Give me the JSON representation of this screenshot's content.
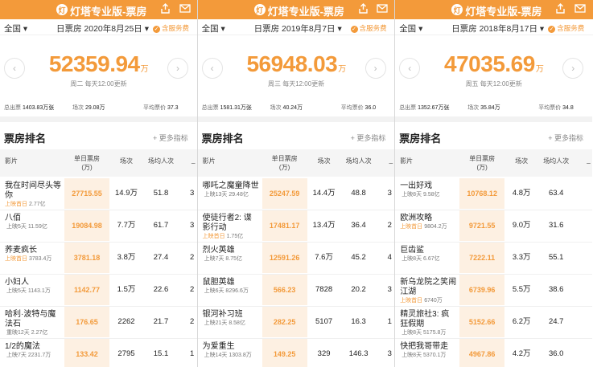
{
  "app": {
    "title": "灯塔专业版-票房",
    "logo_glyph": "灯",
    "share_icon": "share-icon",
    "mail_icon": "mail-icon"
  },
  "colors": {
    "accent": "#f39a3a",
    "tint": "#fdf0e2"
  },
  "labels": {
    "region": "全国",
    "service": "含服务费",
    "rank_title": "票房排名",
    "more": "+ 更多指标",
    "col_film": "影片",
    "col_rev": "单日票房\n(万)",
    "col_count": "场次",
    "col_avg": "场均人次",
    "col_dash": "_",
    "total_label": "总出票",
    "shows_label": "场次",
    "avg_label": "平均票价",
    "unit": "万",
    "prev": "‹",
    "next": "›"
  },
  "panels": [
    {
      "date": "日票房 2020年8月25日",
      "amount": "52359.94",
      "updated": "周二 每天12:00更新",
      "total_tickets": "1403.83万张",
      "shows": "29.08万",
      "avg_price": "37.3",
      "rows": [
        {
          "name": "我在时间尽头等你",
          "tag": "上映首日",
          "sub": "2.77亿",
          "rev": "27715.55",
          "cnt": "14.9万",
          "avg": "51.8",
          "extra": "3"
        },
        {
          "name": "八佰",
          "tag": "",
          "sub": "上映5天 11.59亿",
          "rev": "19084.98",
          "cnt": "7.7万",
          "avg": "61.7",
          "extra": "3"
        },
        {
          "name": "荞麦疯长",
          "tag": "上映首日",
          "sub": "3783.4万",
          "rev": "3781.18",
          "cnt": "3.8万",
          "avg": "27.4",
          "extra": "2"
        },
        {
          "name": "小妇人",
          "tag": "",
          "sub": "上映5天 1143.1万",
          "rev": "1142.77",
          "cnt": "1.5万",
          "avg": "22.6",
          "extra": "2"
        },
        {
          "name": "哈利·波特与魔法石",
          "tag": "",
          "sub": "重映12天 2.27亿",
          "rev": "176.65",
          "cnt": "2262",
          "avg": "21.7",
          "extra": "2"
        },
        {
          "name": "1/2的魔法",
          "tag": "",
          "sub": "上映7天 2231.7万",
          "rev": "133.42",
          "cnt": "2795",
          "avg": "15.1",
          "extra": "1"
        }
      ]
    },
    {
      "date": "日票房 2019年8月7日",
      "amount": "56948.03",
      "updated": "周三 每天12:00更新",
      "total_tickets": "1581.31万张",
      "shows": "40.24万",
      "avg_price": "36.0",
      "rows": [
        {
          "name": "哪吒之魔童降世",
          "tag": "",
          "sub": "上映13天 29.48亿",
          "rev": "25247.59",
          "cnt": "14.4万",
          "avg": "48.8",
          "extra": "3"
        },
        {
          "name": "使徒行者2: 谍影行动",
          "tag": "上映首日",
          "sub": "1.75亿",
          "rev": "17481.17",
          "cnt": "13.4万",
          "avg": "36.4",
          "extra": "2"
        },
        {
          "name": "烈火英雄",
          "tag": "",
          "sub": "上映7天 8.75亿",
          "rev": "12591.26",
          "cnt": "7.6万",
          "avg": "45.2",
          "extra": "4"
        },
        {
          "name": "鼠胆英雄",
          "tag": "",
          "sub": "上映6天 8296.6万",
          "rev": "566.23",
          "cnt": "7828",
          "avg": "20.2",
          "extra": "3"
        },
        {
          "name": "银河补习班",
          "tag": "",
          "sub": "上映21天 8.58亿",
          "rev": "282.25",
          "cnt": "5107",
          "avg": "16.3",
          "extra": "1"
        },
        {
          "name": "为爱重生",
          "tag": "",
          "sub": "上映14天 1303.8万",
          "rev": "149.25",
          "cnt": "329",
          "avg": "146.3",
          "extra": "3"
        }
      ]
    },
    {
      "date": "日票房 2018年8月17日",
      "amount": "47035.69",
      "updated": "周五 每天12:00更新",
      "total_tickets": "1352.67万张",
      "shows": "35.84万",
      "avg_price": "34.8",
      "rows": [
        {
          "name": "一出好戏",
          "tag": "",
          "sub": "上映8天 9.58亿",
          "rev": "10768.12",
          "cnt": "4.8万",
          "avg": "63.4",
          "extra": ""
        },
        {
          "name": "欧洲攻略",
          "tag": "上映首日",
          "sub": "9804.2万",
          "rev": "9721.55",
          "cnt": "9.0万",
          "avg": "31.6",
          "extra": ""
        },
        {
          "name": "巨齿鲨",
          "tag": "",
          "sub": "上映8天 6.67亿",
          "rev": "7222.11",
          "cnt": "3.3万",
          "avg": "55.1",
          "extra": ""
        },
        {
          "name": "新乌龙院之笑闹江湖",
          "tag": "上映首日",
          "sub": "6740万",
          "rev": "6739.96",
          "cnt": "5.5万",
          "avg": "38.6",
          "extra": ""
        },
        {
          "name": "精灵旅社3: 疯狂假期",
          "tag": "",
          "sub": "上映8天 5175.8万",
          "rev": "5152.66",
          "cnt": "6.2万",
          "avg": "24.7",
          "extra": ""
        },
        {
          "name": "快把我哥带走",
          "tag": "",
          "sub": "上映8天 5370.1万",
          "rev": "4967.86",
          "cnt": "4.2万",
          "avg": "36.0",
          "extra": ""
        }
      ]
    }
  ]
}
